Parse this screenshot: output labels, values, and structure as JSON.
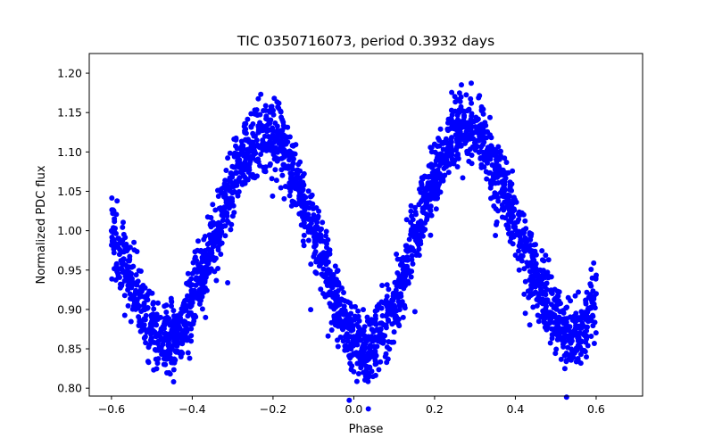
{
  "chart_data": {
    "type": "scatter",
    "title": "TIC 0350716073, period 0.3932 days",
    "xlabel": "Phase",
    "ylabel": "Normalized PDC flux",
    "xlim": [
      -0.655,
      0.715
    ],
    "ylim": [
      0.79,
      1.225
    ],
    "xticks": [
      -0.6,
      -0.4,
      -0.2,
      0.0,
      0.2,
      0.4,
      0.6
    ],
    "xtick_labels": [
      "−0.6",
      "−0.4",
      "−0.2",
      "0.0",
      "0.2",
      "0.4",
      "0.6"
    ],
    "yticks": [
      0.8,
      0.85,
      0.9,
      0.95,
      1.0,
      1.05,
      1.1,
      1.15,
      1.2
    ],
    "ytick_labels": [
      "0.80",
      "0.85",
      "0.90",
      "0.95",
      "1.00",
      "1.05",
      "1.10",
      "1.15",
      "1.20"
    ],
    "grid": false,
    "marker_color": "#0000ff",
    "marker": "filled-circle",
    "series": [
      {
        "values_note": "phase-folded light curve, dense band; outer envelope points",
        "x": [
          -0.6,
          -0.58,
          -0.56,
          -0.54,
          -0.52,
          -0.5,
          -0.48,
          -0.46,
          -0.44,
          -0.42,
          -0.4,
          -0.38,
          -0.36,
          -0.34,
          -0.32,
          -0.3,
          -0.28,
          -0.26,
          -0.24,
          -0.22,
          -0.2,
          -0.18,
          -0.16,
          -0.14,
          -0.12,
          -0.1,
          -0.08,
          -0.06,
          -0.04,
          -0.02,
          0.0,
          0.02,
          0.04,
          0.06,
          0.08,
          0.1,
          0.12,
          0.14,
          0.16,
          0.18,
          0.2,
          0.22,
          0.24,
          0.26,
          0.28,
          0.3,
          0.32,
          0.34,
          0.36,
          0.38,
          0.4,
          0.42,
          0.44,
          0.46,
          0.48,
          0.5,
          0.52,
          0.54,
          0.56,
          0.58,
          0.6
        ],
        "y": [
          1.0,
          0.97,
          0.94,
          0.92,
          0.9,
          0.885,
          0.87,
          0.865,
          0.87,
          0.885,
          0.91,
          0.94,
          0.97,
          1.0,
          1.03,
          1.06,
          1.085,
          1.1,
          1.115,
          1.12,
          1.12,
          1.11,
          1.09,
          1.06,
          1.03,
          1.0,
          0.97,
          0.935,
          0.905,
          0.88,
          0.86,
          0.85,
          0.85,
          0.86,
          0.88,
          0.905,
          0.94,
          0.975,
          1.01,
          1.04,
          1.07,
          1.095,
          1.115,
          1.125,
          1.13,
          1.125,
          1.115,
          1.095,
          1.07,
          1.04,
          1.01,
          0.98,
          0.955,
          0.93,
          0.91,
          0.89,
          0.875,
          0.865,
          0.87,
          0.885,
          0.92
        ]
      }
    ]
  }
}
